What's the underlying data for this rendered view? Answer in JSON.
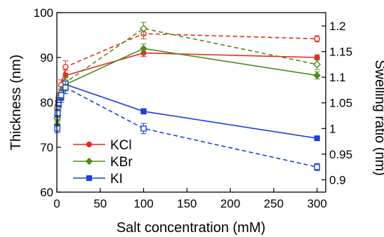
{
  "chart_data": {
    "type": "line",
    "xlabel": "Salt concentration (mM)",
    "ylabel": "Thickness (nm)",
    "y2label": "Swelling ratio (nm)",
    "xlim": [
      0,
      310
    ],
    "ylim": [
      60,
      100
    ],
    "y2lim": [
      0.876,
      1.226
    ],
    "x_ticks": [
      0,
      50,
      100,
      150,
      200,
      250,
      300
    ],
    "x_tick_labels": [
      "0",
      "50",
      "100",
      "150",
      "200",
      "250",
      "300"
    ],
    "y_ticks": [
      60,
      70,
      80,
      90,
      100
    ],
    "y_tick_labels": [
      "60",
      "70",
      "80",
      "90",
      "100"
    ],
    "y2_ticks": [
      0.9,
      0.95,
      1.0,
      1.05,
      1.1,
      1.15,
      1.2
    ],
    "y2_tick_labels": [
      "0.9",
      "0.95",
      "1",
      "1.05",
      "1.1",
      "1.15",
      "1.2"
    ],
    "legend_position": "bottom-left",
    "series": [
      {
        "name": "KCl",
        "color": "#e8291c",
        "marker": "circle",
        "axis": "left",
        "style": "solid",
        "x": [
          0.5,
          1,
          2,
          5,
          10,
          100,
          300
        ],
        "y": [
          76.5,
          78.5,
          80,
          82,
          86,
          91,
          90
        ],
        "err": [
          0.8,
          0.8,
          0.8,
          1,
          1.2,
          0.8,
          0.6
        ]
      },
      {
        "name": "KBr",
        "color": "#4a8c1c",
        "marker": "diamond",
        "axis": "left",
        "style": "solid",
        "x": [
          0.5,
          1,
          2,
          5,
          10,
          100,
          300
        ],
        "y": [
          75,
          77,
          79,
          82,
          84,
          92,
          86
        ],
        "err": [
          1,
          1,
          1,
          1,
          1.5,
          1,
          0.8
        ]
      },
      {
        "name": "KI",
        "color": "#1a3fe0",
        "marker": "square",
        "axis": "left",
        "style": "solid",
        "x": [
          0.5,
          1,
          2,
          5,
          10,
          100,
          300
        ],
        "y": [
          77,
          78,
          79.5,
          81,
          84,
          78,
          72
        ],
        "err": [
          0.8,
          0.8,
          0.8,
          1,
          1,
          0.6,
          0.5
        ]
      },
      {
        "name": "",
        "color": "#e8291c",
        "marker": "circle-open",
        "axis": "right",
        "style": "dashed",
        "x": [
          0.5,
          1,
          2,
          5,
          10,
          100,
          300
        ],
        "y": [
          1.037,
          1.045,
          1.06,
          1.085,
          1.12,
          1.185,
          1.175
        ],
        "err": [
          0.008,
          0.008,
          0.008,
          0.01,
          0.012,
          0.01,
          0.006
        ]
      },
      {
        "name": "",
        "color": "#4a8c1c",
        "marker": "diamond-open",
        "axis": "right",
        "style": "dashed",
        "x": [
          0.5,
          1,
          2,
          5,
          10,
          100,
          300
        ],
        "y": [
          1.02,
          1.04,
          1.055,
          1.07,
          1.09,
          1.195,
          1.125
        ],
        "err": [
          0.01,
          0.01,
          0.01,
          0.012,
          0.015,
          0.012,
          0.01
        ]
      },
      {
        "name": "",
        "color": "#1a3fe0",
        "marker": "square-open",
        "axis": "right",
        "style": "dashed",
        "x": [
          0.5,
          1,
          2,
          5,
          10,
          100,
          300
        ],
        "y": [
          1.0,
          1.03,
          1.05,
          1.065,
          1.08,
          1.0,
          0.925
        ],
        "err": [
          0.008,
          0.008,
          0.008,
          0.01,
          0.012,
          0.01,
          0.007
        ]
      }
    ]
  }
}
